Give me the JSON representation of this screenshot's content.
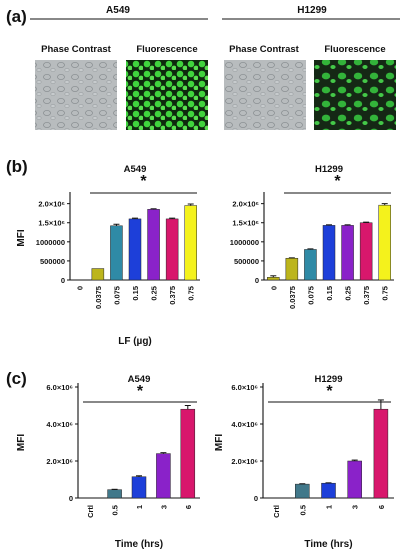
{
  "panel_a": {
    "label": "(a)",
    "groups": [
      {
        "title": "A549",
        "sub": [
          "Phase Contrast",
          "Fluorescence"
        ]
      },
      {
        "title": "H1299",
        "sub": [
          "Phase Contrast",
          "Fluorescence"
        ]
      }
    ]
  },
  "panel_b_label": "(b)",
  "panel_c_label": "(c)",
  "colors": {
    "olive": "#bcb51c",
    "teal": "#2f8aa6",
    "blue": "#1d3fd9",
    "purple": "#8a22c9",
    "magenta": "#d8176c",
    "yellow": "#f4f21c",
    "gray": "#9ea4a6",
    "slate": "#41788a",
    "green": "#3fd43d"
  },
  "chart_data": [
    {
      "type": "bar",
      "title": "A549",
      "xlabel": "LF (µg)",
      "ylabel": "MFI",
      "categories": [
        "0",
        "0.0375",
        "0.075",
        "0.15",
        "0.25",
        "0.375",
        "0.75"
      ],
      "values": [
        0,
        300000,
        1420000,
        1600000,
        1850000,
        1600000,
        1950000
      ],
      "errors": [
        0,
        0,
        40000,
        20000,
        15000,
        20000,
        40000
      ],
      "colors": [
        "#bcb51c",
        "#bcb51c",
        "#2f8aa6",
        "#1d3fd9",
        "#8a22c9",
        "#d8176c",
        "#f4f21c"
      ],
      "ylim": [
        0,
        2200000
      ],
      "yticks": [
        "2.0×10⁶",
        "1.5×10⁶",
        "1000000",
        "500000",
        "0"
      ],
      "ytick_values": [
        2000000,
        1500000,
        1000000,
        500000,
        0
      ],
      "significance": "*"
    },
    {
      "type": "bar",
      "title": "H1299",
      "xlabel": "",
      "ylabel": "",
      "categories": [
        "0",
        "0.0375",
        "0.075",
        "0.15",
        "0.25",
        "0.375",
        "0.75"
      ],
      "values": [
        70000,
        570000,
        800000,
        1430000,
        1430000,
        1500000,
        1960000
      ],
      "errors": [
        40000,
        10000,
        15000,
        15000,
        15000,
        15000,
        40000
      ],
      "colors": [
        "#bcb51c",
        "#bcb51c",
        "#2f8aa6",
        "#1d3fd9",
        "#8a22c9",
        "#d8176c",
        "#f4f21c"
      ],
      "ylim": [
        0,
        2200000
      ],
      "yticks": [
        "2.0×10⁶",
        "1.5×10⁶",
        "1000000",
        "500000",
        "0"
      ],
      "ytick_values": [
        2000000,
        1500000,
        1000000,
        500000,
        0
      ],
      "significance": "*"
    },
    {
      "type": "bar",
      "title": "A549",
      "xlabel": "Time (hrs)",
      "ylabel": "MFI",
      "categories": [
        "Crtl",
        "0.5",
        "1",
        "3",
        "6"
      ],
      "values": [
        0,
        450000,
        1150000,
        2400000,
        4800000
      ],
      "errors": [
        0,
        20000,
        50000,
        50000,
        200000
      ],
      "colors": [
        "#41788a",
        "#41788a",
        "#1d3fd9",
        "#8a22c9",
        "#d8176c"
      ],
      "ylim": [
        0,
        6000000
      ],
      "yticks": [
        "6.0×10⁶",
        "4.0×10⁶",
        "2.0×10⁶",
        "0"
      ],
      "ytick_values": [
        6000000,
        4000000,
        2000000,
        0
      ],
      "significance": "*"
    },
    {
      "type": "bar",
      "title": "H1299",
      "xlabel": "Time (hrs)",
      "ylabel": "MFI",
      "categories": [
        "Crtl",
        "0.5",
        "1",
        "3",
        "6"
      ],
      "values": [
        0,
        750000,
        800000,
        2000000,
        4800000
      ],
      "errors": [
        0,
        20000,
        20000,
        50000,
        500000
      ],
      "colors": [
        "#41788a",
        "#41788a",
        "#1d3fd9",
        "#8a22c9",
        "#d8176c"
      ],
      "ylim": [
        0,
        6000000
      ],
      "yticks": [
        "6.0×10⁶",
        "4.0×10⁶",
        "2.0×10⁶",
        "0"
      ],
      "ytick_values": [
        6000000,
        4000000,
        2000000,
        0
      ],
      "significance": "*"
    }
  ]
}
